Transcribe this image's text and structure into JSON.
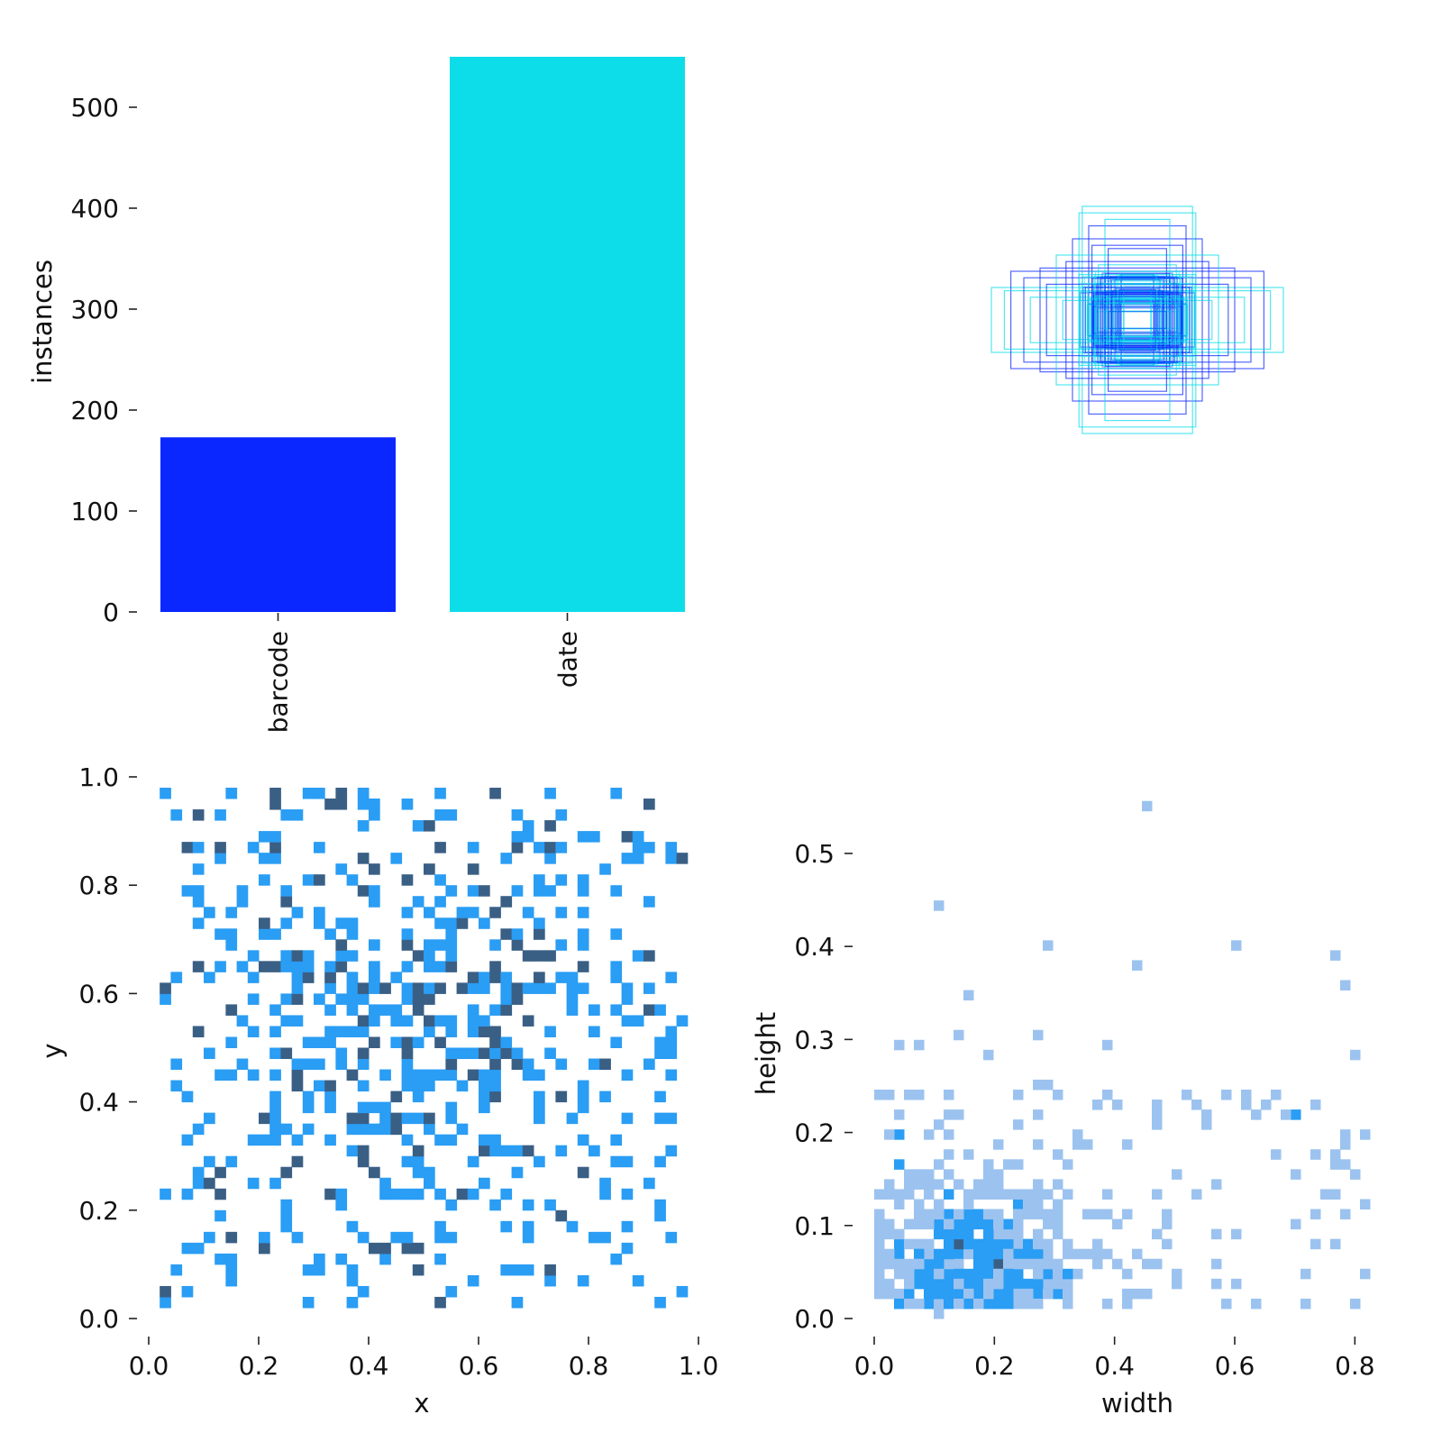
{
  "colors": {
    "barcode": "#0a27ff",
    "date": "#0ddde9",
    "hist_cell": "#2a9df4",
    "hist_light": "#9cc3ef",
    "hist_dark": "#3a5f85"
  },
  "chart_data": [
    {
      "id": "class-counts",
      "type": "bar",
      "categories": [
        "barcode",
        "date"
      ],
      "values": [
        173,
        550
      ],
      "ylabel": "instances",
      "xlabel": "",
      "ylim": [
        0,
        550
      ],
      "yticks": [
        "0",
        "100",
        "200",
        "300",
        "400",
        "500"
      ],
      "colors": [
        "#0a27ff",
        "#0ddde9"
      ],
      "grid": false,
      "legend": "none"
    },
    {
      "id": "box-overlay",
      "type": "scatter",
      "description_kind": "overlaid bounding-box outlines centered at (0.5, 0.5)",
      "boxes": [
        {
          "w": 0.9,
          "h": 0.2,
          "c": "cyan"
        },
        {
          "w": 0.78,
          "h": 0.3,
          "c": "blue"
        },
        {
          "w": 0.36,
          "h": 0.66,
          "c": "cyan"
        },
        {
          "w": 0.4,
          "h": 0.5,
          "c": "blue"
        },
        {
          "w": 0.34,
          "h": 0.7,
          "c": "cyan"
        },
        {
          "w": 0.6,
          "h": 0.32,
          "c": "blue"
        },
        {
          "w": 0.82,
          "h": 0.18,
          "c": "cyan"
        },
        {
          "w": 0.3,
          "h": 0.58,
          "c": "blue"
        },
        {
          "w": 0.2,
          "h": 0.62,
          "c": "cyan"
        },
        {
          "w": 0.7,
          "h": 0.26,
          "c": "blue"
        },
        {
          "w": 0.5,
          "h": 0.4,
          "c": "cyan"
        },
        {
          "w": 0.44,
          "h": 0.36,
          "c": "blue"
        },
        {
          "w": 0.66,
          "h": 0.14,
          "c": "cyan"
        },
        {
          "w": 0.28,
          "h": 0.46,
          "c": "blue"
        },
        {
          "w": 0.36,
          "h": 0.28,
          "c": "cyan"
        },
        {
          "w": 0.56,
          "h": 0.22,
          "c": "blue"
        },
        {
          "w": 0.24,
          "h": 0.34,
          "c": "cyan"
        },
        {
          "w": 0.32,
          "h": 0.2,
          "c": "blue"
        },
        {
          "w": 0.2,
          "h": 0.24,
          "c": "cyan"
        },
        {
          "w": 0.26,
          "h": 0.16,
          "c": "blue"
        },
        {
          "w": 0.16,
          "h": 0.18,
          "c": "cyan"
        },
        {
          "w": 0.12,
          "h": 0.12,
          "c": "blue"
        },
        {
          "w": 0.3,
          "h": 0.1,
          "c": "cyan"
        },
        {
          "w": 0.1,
          "h": 0.28,
          "c": "blue"
        },
        {
          "w": 0.46,
          "h": 0.12,
          "c": "cyan"
        },
        {
          "w": 0.18,
          "h": 0.44,
          "c": "blue"
        }
      ]
    },
    {
      "id": "xy-hist",
      "type": "heatmap",
      "xlabel": "x",
      "ylabel": "y",
      "xlim": [
        0.0,
        1.0
      ],
      "ylim": [
        0.0,
        1.0
      ],
      "xticks": [
        "0.0",
        "0.2",
        "0.4",
        "0.6",
        "0.8",
        "1.0"
      ],
      "yticks": [
        "0.0",
        "0.2",
        "0.4",
        "0.6",
        "0.8",
        "1.0"
      ],
      "x_range": [
        0.03,
        0.97
      ],
      "y_range": [
        0.02,
        0.98
      ],
      "bins": 50,
      "distribution": "uniform-ish, denser around (0.5, 0.5)"
    },
    {
      "id": "wh-hist",
      "type": "heatmap",
      "xlabel": "width",
      "ylabel": "height",
      "xlim": [
        0.0,
        0.84
      ],
      "ylim": [
        0.0,
        0.56
      ],
      "xticks": [
        "0.0",
        "0.2",
        "0.4",
        "0.6",
        "0.8"
      ],
      "yticks": [
        "0.0",
        "0.1",
        "0.2",
        "0.3",
        "0.4",
        "0.5"
      ],
      "distribution": "concentrated near width 0.05–0.3, height 0.01–0.15"
    }
  ]
}
